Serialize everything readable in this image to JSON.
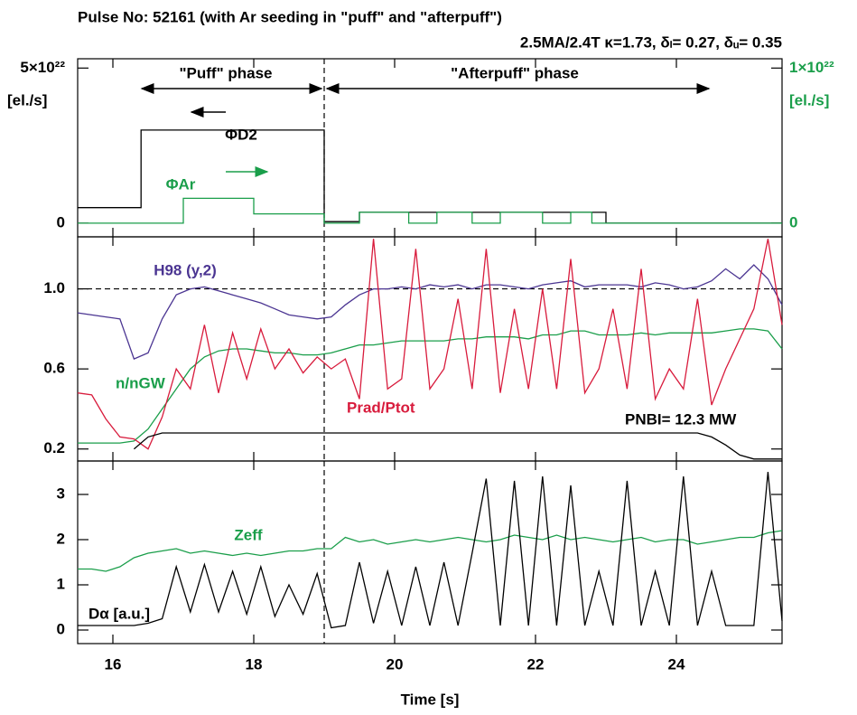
{
  "chart_data": [
    {
      "type": "line",
      "title": "Pulse No: 52161 (with Ar seeding in \"puff\" and \"afterpuff\")",
      "subtitle": "2.5MA/2.4T   κ=1.73, δₗ= 0.27, δᵤ= 0.35",
      "annotations": [
        "\"Puff\" phase",
        "\"Afterpuff\" phase"
      ],
      "ylabel": "[el./s]",
      "y2label": "[el./s]",
      "xlim": [
        15.5,
        25.5
      ],
      "xticks": [
        16,
        18,
        20,
        22,
        24
      ],
      "ylim": [
        -4.4e+21,
        5.3e+22
      ],
      "yticks": [
        0,
        {
          "value": 5e+22,
          "label": "5×10²²"
        }
      ],
      "y2lim": [
        -8.8e+20,
        1.06e+22
      ],
      "y2ticks": [
        0,
        {
          "value": 1e+22,
          "label": "1×10²²"
        }
      ],
      "vline": 19,
      "series": [
        {
          "name": "ΦD2",
          "color": "#000000",
          "x": [
            15.5,
            16.4,
            16.4,
            19.0,
            19.0,
            19.5,
            19.5,
            23.0,
            23.0,
            25.5
          ],
          "values": [
            5e+21,
            5e+21,
            3e+22,
            3e+22,
            5e+20,
            5e+20,
            3.5e+21,
            3.5e+21,
            0,
            0
          ]
        },
        {
          "name": "ΦAr",
          "color": "#1a9e4a",
          "axis": "y2",
          "x": [
            15.5,
            17.0,
            17.0,
            18.0,
            18.0,
            19.0,
            19.0,
            19.5,
            19.5,
            20.2,
            20.2,
            20.6,
            20.6,
            21.1,
            21.1,
            21.5,
            21.5,
            22.1,
            22.1,
            22.5,
            22.5,
            22.8,
            22.8,
            25.5
          ],
          "values": [
            0,
            0,
            1.6e+21,
            1.6e+21,
            6e+20,
            6e+20,
            0,
            0,
            7e+20,
            7e+20,
            0,
            0,
            7e+20,
            7e+20,
            0,
            0,
            7e+20,
            7e+20,
            0,
            0,
            7e+20,
            7e+20,
            0,
            0
          ]
        }
      ]
    },
    {
      "type": "line",
      "xlim": [
        15.5,
        25.5
      ],
      "xticks": [
        16,
        18,
        20,
        22,
        24
      ],
      "ylim": [
        0.14,
        1.26
      ],
      "yticks": [
        0.2,
        0.6,
        {
          "value": 1,
          "label": "1.0"
        }
      ],
      "vline": 19,
      "hline": 1,
      "x": [
        15.5,
        15.7,
        15.9,
        16.1,
        16.3,
        16.5,
        16.7,
        16.9,
        17.1,
        17.3,
        17.5,
        17.7,
        17.9,
        18.1,
        18.3,
        18.5,
        18.7,
        18.9,
        19.1,
        19.3,
        19.5,
        19.7,
        19.9,
        20.1,
        20.3,
        20.5,
        20.7,
        20.9,
        21.1,
        21.3,
        21.5,
        21.7,
        21.9,
        22.1,
        22.3,
        22.5,
        22.7,
        22.9,
        23.1,
        23.3,
        23.5,
        23.7,
        23.9,
        24.1,
        24.3,
        24.5,
        24.7,
        24.9,
        25.1,
        25.3,
        25.5
      ],
      "series": [
        {
          "name": "H98 (y,2)",
          "color": "#4b3592",
          "values": [
            0.88,
            0.87,
            0.86,
            0.85,
            0.65,
            0.68,
            0.85,
            0.97,
            1.0,
            1.01,
            0.99,
            0.97,
            0.95,
            0.93,
            0.9,
            0.87,
            0.86,
            0.85,
            0.86,
            0.92,
            0.97,
            1.0,
            1.0,
            1.01,
            1.0,
            1.02,
            1.01,
            1.02,
            1.0,
            1.02,
            1.02,
            1.01,
            1.0,
            1.02,
            1.03,
            1.04,
            1.01,
            1.02,
            1.02,
            1.02,
            1.01,
            1.03,
            1.02,
            1.0,
            1.01,
            1.04,
            1.1,
            1.05,
            1.12,
            1.05,
            0.92
          ]
        },
        {
          "name": "n/nGW",
          "color": "#1a9e4a",
          "values": [
            0.23,
            0.23,
            0.23,
            0.23,
            0.24,
            0.3,
            0.4,
            0.5,
            0.6,
            0.66,
            0.69,
            0.7,
            0.7,
            0.69,
            0.68,
            0.68,
            0.67,
            0.67,
            0.68,
            0.7,
            0.72,
            0.72,
            0.73,
            0.74,
            0.74,
            0.74,
            0.74,
            0.75,
            0.75,
            0.76,
            0.76,
            0.76,
            0.75,
            0.77,
            0.77,
            0.79,
            0.79,
            0.77,
            0.77,
            0.77,
            0.78,
            0.77,
            0.78,
            0.78,
            0.78,
            0.78,
            0.79,
            0.8,
            0.8,
            0.79,
            0.7
          ]
        },
        {
          "name": "Prad/Ptot",
          "color": "#d81b3c",
          "values": [
            0.48,
            0.47,
            0.35,
            0.26,
            0.25,
            0.2,
            0.36,
            0.6,
            0.5,
            0.82,
            0.48,
            0.78,
            0.55,
            0.8,
            0.6,
            0.7,
            0.58,
            0.66,
            0.6,
            0.65,
            0.45,
            1.25,
            0.5,
            0.55,
            1.2,
            0.5,
            0.6,
            0.95,
            0.5,
            1.2,
            0.48,
            0.9,
            0.5,
            1.0,
            0.5,
            1.15,
            0.48,
            0.6,
            0.9,
            0.5,
            1.1,
            0.45,
            0.6,
            0.5,
            0.95,
            0.42,
            0.6,
            0.75,
            0.9,
            1.25,
            0.82
          ]
        },
        {
          "name": "PNBI= 12.3 MW",
          "color": "#000000",
          "values": [
            null,
            null,
            null,
            null,
            0.2,
            0.26,
            0.28,
            0.28,
            0.28,
            0.28,
            0.28,
            0.28,
            0.28,
            0.28,
            0.28,
            0.28,
            0.28,
            0.28,
            0.28,
            0.28,
            0.28,
            0.28,
            0.28,
            0.28,
            0.28,
            0.28,
            0.28,
            0.28,
            0.28,
            0.28,
            0.28,
            0.28,
            0.28,
            0.28,
            0.28,
            0.28,
            0.28,
            0.28,
            0.28,
            0.28,
            0.28,
            0.28,
            0.28,
            0.28,
            0.28,
            0.26,
            0.22,
            0.17,
            0.15,
            0.15,
            0.15
          ]
        }
      ]
    },
    {
      "type": "line",
      "xlabel": "Time [s]",
      "xlim": [
        15.5,
        25.5
      ],
      "xticks": [
        16,
        18,
        20,
        22,
        24
      ],
      "ylim": [
        -0.3,
        3.74
      ],
      "yticks": [
        0,
        1,
        2,
        3
      ],
      "vline": 19,
      "x": [
        15.5,
        15.7,
        15.9,
        16.1,
        16.3,
        16.5,
        16.7,
        16.9,
        17.1,
        17.3,
        17.5,
        17.7,
        17.9,
        18.1,
        18.3,
        18.5,
        18.7,
        18.9,
        19.1,
        19.3,
        19.5,
        19.7,
        19.9,
        20.1,
        20.3,
        20.5,
        20.7,
        20.9,
        21.1,
        21.3,
        21.5,
        21.7,
        21.9,
        22.1,
        22.3,
        22.5,
        22.7,
        22.9,
        23.1,
        23.3,
        23.5,
        23.7,
        23.9,
        24.1,
        24.3,
        24.5,
        24.7,
        24.9,
        25.1,
        25.3,
        25.5
      ],
      "series": [
        {
          "name": "Zeff",
          "color": "#1a9e4a",
          "values": [
            1.35,
            1.35,
            1.3,
            1.4,
            1.6,
            1.7,
            1.75,
            1.8,
            1.7,
            1.75,
            1.7,
            1.65,
            1.7,
            1.65,
            1.7,
            1.75,
            1.75,
            1.8,
            1.8,
            2.05,
            1.95,
            2.0,
            1.9,
            1.95,
            2.0,
            1.95,
            2.0,
            2.05,
            2.0,
            1.95,
            2.0,
            2.1,
            2.05,
            2.0,
            2.1,
            2.0,
            2.05,
            2.0,
            1.95,
            2.0,
            2.05,
            1.95,
            2.0,
            2.0,
            1.9,
            1.95,
            2.0,
            2.05,
            2.05,
            2.15,
            2.2
          ]
        },
        {
          "name": "Dα [a.u.]",
          "color": "#000000",
          "values": [
            0.1,
            0.1,
            0.1,
            0.1,
            0.1,
            0.15,
            0.25,
            1.4,
            0.4,
            1.45,
            0.4,
            1.3,
            0.35,
            1.4,
            0.3,
            1.0,
            0.35,
            1.25,
            0.05,
            0.1,
            1.5,
            0.15,
            1.3,
            0.1,
            1.4,
            0.1,
            1.5,
            0.1,
            1.7,
            3.35,
            0.1,
            3.3,
            0.1,
            3.4,
            0.1,
            3.2,
            0.1,
            1.3,
            0.1,
            3.3,
            0.1,
            1.3,
            0.1,
            3.4,
            0.1,
            1.3,
            0.1,
            0.1,
            0.1,
            3.5,
            0.2
          ]
        }
      ]
    }
  ]
}
